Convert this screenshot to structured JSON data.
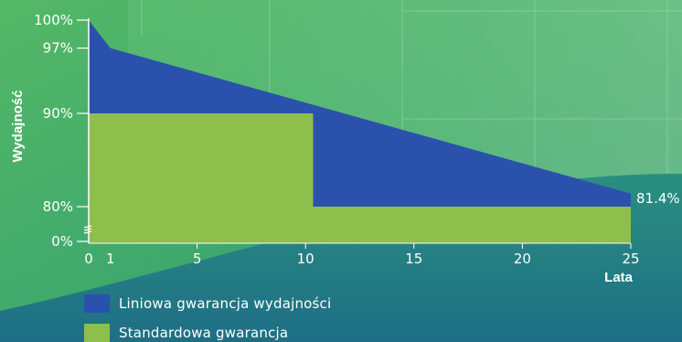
{
  "colors": {
    "linear": "#2a52ad",
    "standard": "#8ebe4b",
    "text": "#ffffff",
    "bg_light": "#5cc073",
    "bg_dark": "#1f7d86"
  },
  "chart_data": {
    "type": "area",
    "ylabel": "Wydajność",
    "xlabel": "Lata",
    "x_ticks": [
      "0",
      "1",
      "5",
      "10",
      "15",
      "20",
      "25"
    ],
    "y_ticks": [
      "100%",
      "97%",
      "90%",
      "80%",
      "0%"
    ],
    "xlim": [
      0,
      25
    ],
    "series": [
      {
        "name": "Liniowa gwarancja wydajności",
        "x": [
          0,
          1,
          25
        ],
        "y": [
          100,
          97,
          81.4
        ]
      },
      {
        "name": "Standardowa gwarancja",
        "x": [
          0,
          10,
          10,
          25
        ],
        "y": [
          90,
          90,
          80,
          80
        ]
      }
    ],
    "annotations": [
      "81.4%"
    ]
  }
}
